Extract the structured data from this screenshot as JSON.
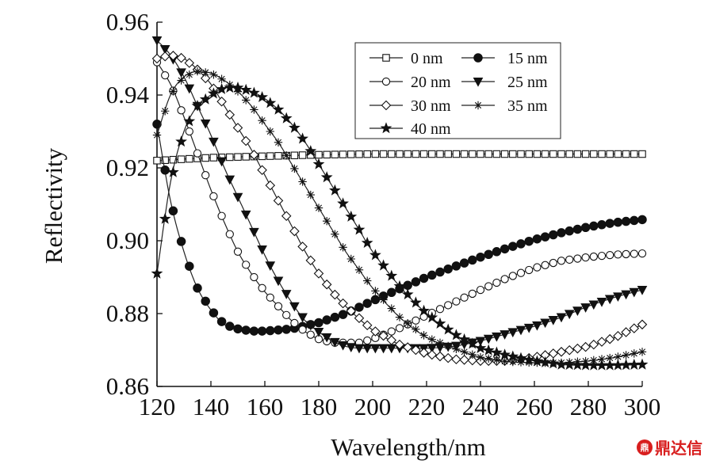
{
  "chart_data": {
    "type": "line",
    "xlabel": "Wavelength/nm",
    "ylabel": "Reflectivity",
    "xlim": [
      120,
      300
    ],
    "ylim": [
      0.86,
      0.96
    ],
    "x_ticks": [
      "120",
      "140",
      "160",
      "180",
      "200",
      "220",
      "240",
      "260",
      "280",
      "300"
    ],
    "y_ticks": [
      "0.86",
      "0.88",
      "0.90",
      "0.92",
      "0.94",
      "0.96"
    ],
    "legend_position": "top-right",
    "grid": false,
    "series": [
      {
        "name": "0 nm",
        "marker": "open-square",
        "x": [
          120,
          140,
          160,
          180,
          200,
          220,
          240,
          260,
          280,
          300
        ],
        "y": [
          0.922,
          0.9228,
          0.9232,
          0.9236,
          0.9238,
          0.9238,
          0.9238,
          0.9238,
          0.9238,
          0.9238
        ]
      },
      {
        "name": "15 nm",
        "marker": "filled-circle",
        "x": [
          120,
          125,
          130,
          135,
          140,
          145,
          150,
          155,
          160,
          170,
          180,
          190,
          200,
          210,
          220,
          230,
          240,
          250,
          260,
          270,
          280,
          290,
          300
        ],
        "y": [
          0.932,
          0.911,
          0.897,
          0.887,
          0.881,
          0.877,
          0.8758,
          0.8752,
          0.8752,
          0.8758,
          0.8775,
          0.88,
          0.8835,
          0.8868,
          0.89,
          0.8928,
          0.8955,
          0.898,
          0.9003,
          0.9022,
          0.9038,
          0.905,
          0.9058
        ]
      },
      {
        "name": "20 nm",
        "marker": "open-circle",
        "x": [
          120,
          125,
          130,
          135,
          140,
          145,
          150,
          155,
          160,
          165,
          170,
          175,
          180,
          185,
          190,
          195,
          200,
          210,
          220,
          230,
          240,
          250,
          260,
          270,
          280,
          290,
          300
        ],
        "y": [
          0.949,
          0.943,
          0.934,
          0.924,
          0.914,
          0.905,
          0.897,
          0.891,
          0.886,
          0.882,
          0.878,
          0.875,
          0.873,
          0.872,
          0.872,
          0.872,
          0.873,
          0.876,
          0.8795,
          0.883,
          0.8865,
          0.8898,
          0.8925,
          0.8945,
          0.8955,
          0.8962,
          0.8965
        ]
      },
      {
        "name": "25 nm",
        "marker": "filled-triangle-down",
        "x": [
          120,
          125,
          130,
          135,
          140,
          145,
          150,
          155,
          160,
          165,
          170,
          175,
          180,
          185,
          190,
          195,
          200,
          205,
          210,
          215,
          220,
          230,
          240,
          250,
          260,
          270,
          280,
          290,
          300
        ],
        "y": [
          0.955,
          0.951,
          0.945,
          0.937,
          0.929,
          0.92,
          0.912,
          0.904,
          0.896,
          0.889,
          0.883,
          0.878,
          0.875,
          0.8725,
          0.871,
          0.8705,
          0.8705,
          0.8705,
          0.8705,
          0.8705,
          0.8705,
          0.871,
          0.8725,
          0.8745,
          0.8765,
          0.879,
          0.882,
          0.8845,
          0.8865
        ]
      },
      {
        "name": "30 nm",
        "marker": "open-diamond",
        "x": [
          120,
          125,
          130,
          135,
          140,
          145,
          150,
          155,
          160,
          165,
          170,
          175,
          180,
          185,
          190,
          200,
          210,
          220,
          230,
          240,
          250,
          260,
          270,
          280,
          290,
          300
        ],
        "y": [
          0.95,
          0.951,
          0.95,
          0.947,
          0.943,
          0.937,
          0.931,
          0.925,
          0.918,
          0.911,
          0.904,
          0.897,
          0.891,
          0.886,
          0.882,
          0.8755,
          0.8715,
          0.869,
          0.8675,
          0.867,
          0.867,
          0.868,
          0.8695,
          0.871,
          0.8735,
          0.877
        ]
      },
      {
        "name": "35 nm",
        "marker": "star-asterisk",
        "x": [
          120,
          125,
          130,
          135,
          140,
          145,
          150,
          155,
          160,
          165,
          170,
          175,
          180,
          185,
          190,
          195,
          200,
          210,
          220,
          230,
          240,
          250,
          260,
          270,
          280,
          290,
          300
        ],
        "y": [
          0.929,
          0.94,
          0.945,
          0.9465,
          0.946,
          0.944,
          0.941,
          0.937,
          0.932,
          0.927,
          0.921,
          0.915,
          0.909,
          0.903,
          0.897,
          0.892,
          0.887,
          0.879,
          0.8735,
          0.8705,
          0.868,
          0.8668,
          0.8665,
          0.8665,
          0.867,
          0.868,
          0.8695
        ]
      },
      {
        "name": "40 nm",
        "marker": "filled-star",
        "x": [
          120,
          125,
          130,
          135,
          140,
          145,
          150,
          155,
          160,
          165,
          170,
          175,
          180,
          185,
          190,
          195,
          200,
          210,
          220,
          230,
          240,
          250,
          260,
          270,
          280,
          290,
          300
        ],
        "y": [
          0.891,
          0.916,
          0.93,
          0.937,
          0.94,
          0.942,
          0.942,
          0.941,
          0.939,
          0.936,
          0.932,
          0.927,
          0.921,
          0.915,
          0.909,
          0.903,
          0.897,
          0.8875,
          0.88,
          0.8745,
          0.8705,
          0.8685,
          0.867,
          0.866,
          0.8658,
          0.8658,
          0.866
        ]
      }
    ]
  },
  "watermark": {
    "text": "鼎达信",
    "color": "#d81e1e"
  }
}
